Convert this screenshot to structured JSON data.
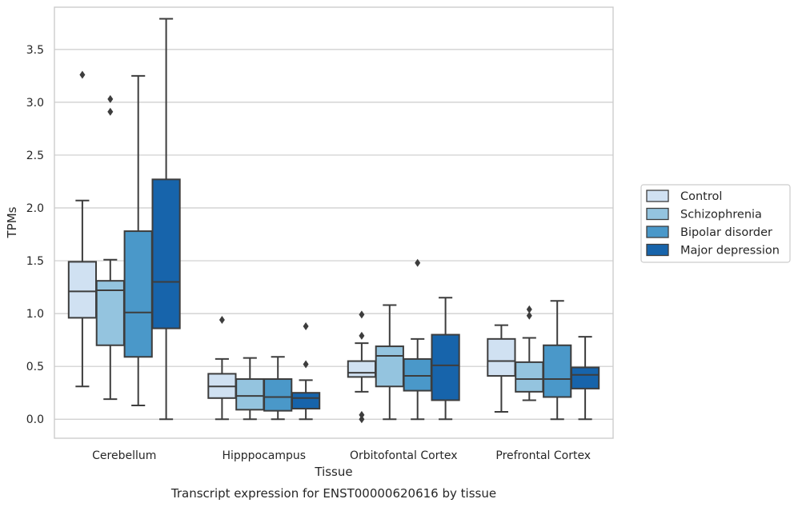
{
  "chart_data": {
    "type": "boxplot",
    "xlabel": "Tissue",
    "ylabel": "TPMs",
    "caption": "Transcript expression for ENST00000620616 by tissue",
    "ylim": [
      -0.18,
      3.9
    ],
    "yticks": [
      0.0,
      0.5,
      1.0,
      1.5,
      2.0,
      2.5,
      3.0,
      3.5
    ],
    "ytick_labels": [
      "0.0",
      "0.5",
      "1.0",
      "1.5",
      "2.0",
      "2.5",
      "3.0",
      "3.5"
    ],
    "grid": "horizontal",
    "legend_position": "right",
    "categories": [
      "Cerebellum",
      "Hipppocampus",
      "Orbitofontal Cortex",
      "Prefrontal Cortex"
    ],
    "series": [
      {
        "name": "Control",
        "color": "#d0e1f2",
        "boxes": [
          {
            "whislo": 0.31,
            "q1": 0.96,
            "med": 1.21,
            "q3": 1.49,
            "whishi": 2.07,
            "fliers": [
              3.26
            ]
          },
          {
            "whislo": 0.0,
            "q1": 0.2,
            "med": 0.31,
            "q3": 0.43,
            "whishi": 0.57,
            "fliers": [
              0.94
            ]
          },
          {
            "whislo": 0.26,
            "q1": 0.4,
            "med": 0.44,
            "q3": 0.55,
            "whishi": 0.72,
            "fliers": [
              0.0,
              0.04,
              0.79,
              0.99
            ]
          },
          {
            "whislo": 0.07,
            "q1": 0.41,
            "med": 0.55,
            "q3": 0.76,
            "whishi": 0.89,
            "fliers": []
          }
        ]
      },
      {
        "name": "Schizophrenia",
        "color": "#94c4df",
        "boxes": [
          {
            "whislo": 0.19,
            "q1": 0.7,
            "med": 1.22,
            "q3": 1.31,
            "whishi": 1.51,
            "fliers": [
              2.91,
              3.03
            ]
          },
          {
            "whislo": 0.0,
            "q1": 0.09,
            "med": 0.22,
            "q3": 0.38,
            "whishi": 0.58,
            "fliers": []
          },
          {
            "whislo": 0.0,
            "q1": 0.31,
            "med": 0.6,
            "q3": 0.69,
            "whishi": 1.08,
            "fliers": []
          },
          {
            "whislo": 0.18,
            "q1": 0.26,
            "med": 0.38,
            "q3": 0.54,
            "whishi": 0.77,
            "fliers": [
              0.98,
              1.04
            ]
          }
        ]
      },
      {
        "name": "Bipolar disorder",
        "color": "#4a98c9",
        "boxes": [
          {
            "whislo": 0.13,
            "q1": 0.59,
            "med": 1.01,
            "q3": 1.78,
            "whishi": 3.25,
            "fliers": []
          },
          {
            "whislo": 0.0,
            "q1": 0.08,
            "med": 0.21,
            "q3": 0.38,
            "whishi": 0.59,
            "fliers": []
          },
          {
            "whislo": 0.0,
            "q1": 0.27,
            "med": 0.41,
            "q3": 0.57,
            "whishi": 0.76,
            "fliers": [
              1.48
            ]
          },
          {
            "whislo": 0.0,
            "q1": 0.21,
            "med": 0.38,
            "q3": 0.7,
            "whishi": 1.12,
            "fliers": []
          }
        ]
      },
      {
        "name": "Major depression",
        "color": "#1764ab",
        "boxes": [
          {
            "whislo": 0.0,
            "q1": 0.86,
            "med": 1.3,
            "q3": 2.27,
            "whishi": 3.79,
            "fliers": []
          },
          {
            "whislo": 0.0,
            "q1": 0.1,
            "med": 0.2,
            "q3": 0.25,
            "whishi": 0.37,
            "fliers": [
              0.52,
              0.88
            ]
          },
          {
            "whislo": 0.0,
            "q1": 0.18,
            "med": 0.51,
            "q3": 0.8,
            "whishi": 1.15,
            "fliers": []
          },
          {
            "whislo": 0.0,
            "q1": 0.29,
            "med": 0.42,
            "q3": 0.49,
            "whishi": 0.78,
            "fliers": []
          }
        ]
      }
    ]
  }
}
